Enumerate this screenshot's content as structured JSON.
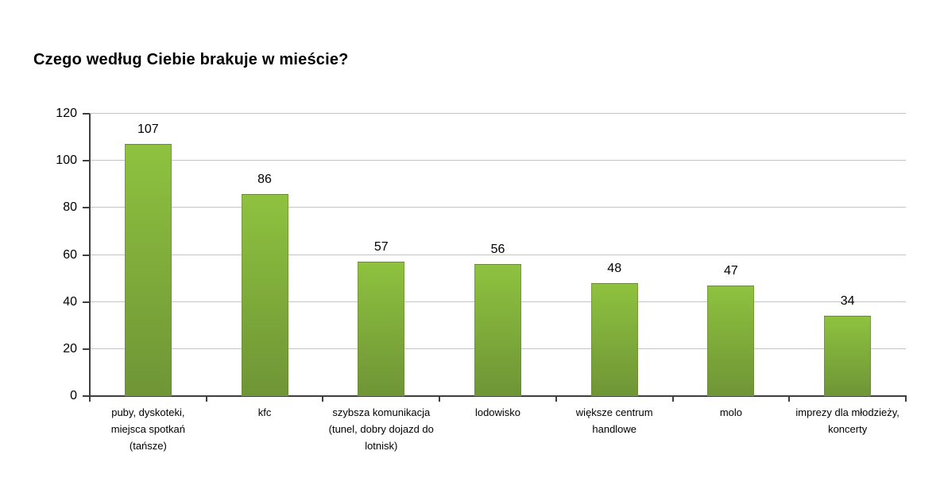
{
  "chart_data": {
    "type": "bar",
    "title": "Czego według Ciebie brakuje w mieście?",
    "xlabel": "",
    "ylabel": "",
    "ylim": [
      0,
      120
    ],
    "yticks": [
      0,
      20,
      40,
      60,
      80,
      100,
      120
    ],
    "grid": true,
    "legend": false,
    "categories": [
      "puby, dyskoteki, miejsca spotkań (tańsze)",
      "kfc",
      "szybsza komunikacja (tunel, dobry dojazd do lotnisk)",
      "lodowisko",
      "większe centrum handlowe",
      "molo",
      "imprezy dla młodzieży, koncerty"
    ],
    "category_lines": [
      [
        "puby, dyskoteki,",
        "miejsca spotkań",
        "(tańsze)"
      ],
      [
        "kfc"
      ],
      [
        "szybsza komunikacja",
        "(tunel, dobry dojazd do",
        "lotnisk)"
      ],
      [
        "lodowisko"
      ],
      [
        "większe centrum",
        "handlowe"
      ],
      [
        "molo"
      ],
      [
        "imprezy dla młodzieży,",
        "koncerty"
      ]
    ],
    "values": [
      107,
      86,
      57,
      56,
      48,
      47,
      34
    ],
    "colors": {
      "bar_gradient_top": "#8ec23f",
      "bar_gradient_bottom": "#6f9536",
      "gridline": "#c4c4c4",
      "axis": "#3f3f3f",
      "text": "#000000",
      "background": "#ffffff"
    }
  }
}
